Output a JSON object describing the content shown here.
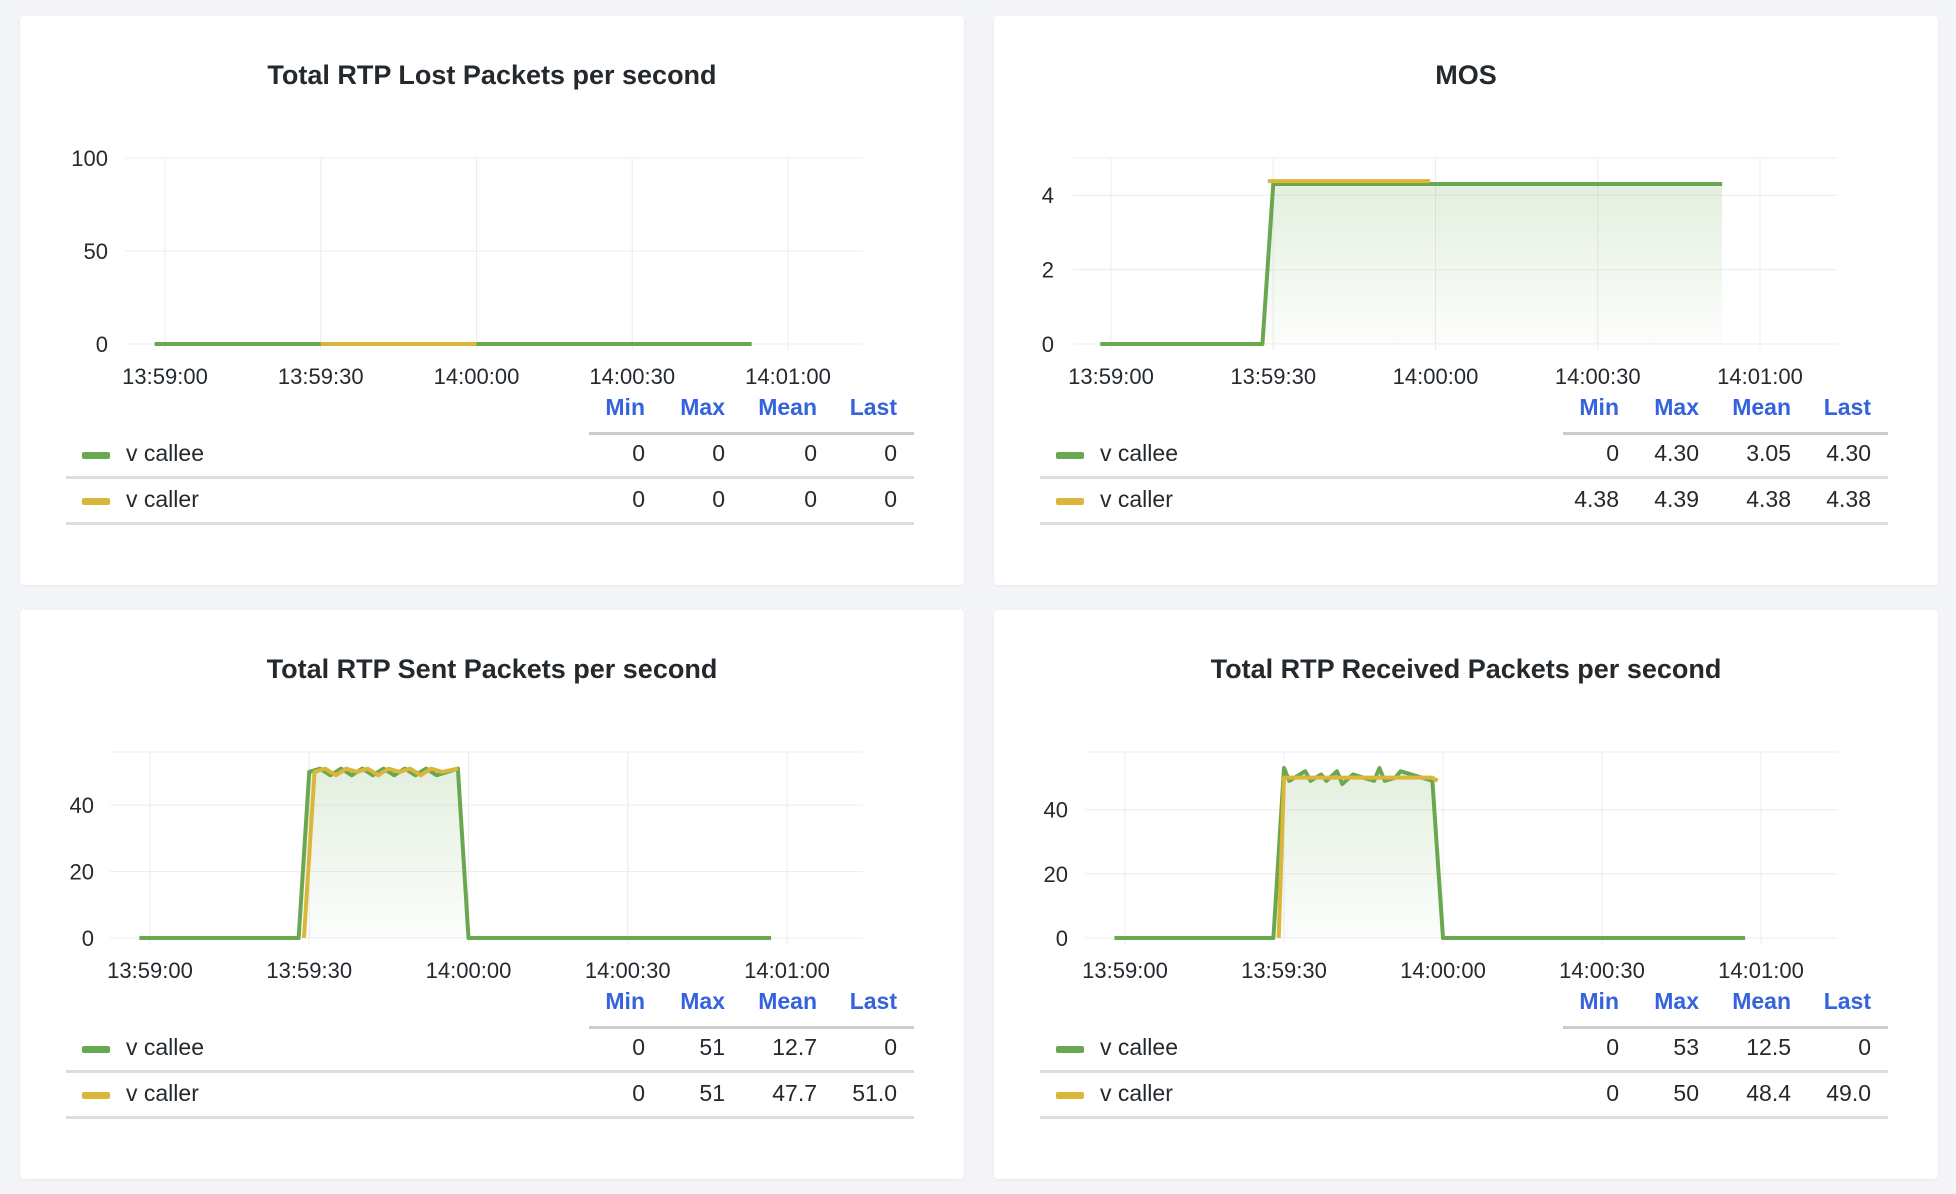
{
  "colors": {
    "callee": "#6aa84f",
    "caller": "#dcb63a",
    "header": "#3563de"
  },
  "legend_headers": [
    "Min",
    "Max",
    "Mean",
    "Last"
  ],
  "panels": [
    {
      "title": "Total RTP Lost Packets per second",
      "chart_data": {
        "type": "line",
        "ylim": [
          0,
          100
        ],
        "yticks": [
          "0",
          "50",
          "100"
        ],
        "xticks": [
          "13:59:00",
          "13:59:30",
          "14:00:00",
          "14:00:30",
          "14:01:00"
        ],
        "series": [
          {
            "name": "v callee",
            "color": "#6aa84f",
            "fill": false,
            "points": [
              [
                "13:58:58",
                0
              ],
              [
                "14:00:53",
                0
              ]
            ]
          },
          {
            "name": "v caller",
            "color": "#dcb63a",
            "fill": false,
            "points": [
              [
                "13:59:30",
                0
              ],
              [
                "14:00:00",
                0
              ]
            ]
          }
        ]
      },
      "legend": [
        {
          "name": "v callee",
          "min": "0",
          "max": "0",
          "mean": "0",
          "last": "0"
        },
        {
          "name": "v caller",
          "min": "0",
          "max": "0",
          "mean": "0",
          "last": "0"
        }
      ]
    },
    {
      "title": "MOS",
      "chart_data": {
        "type": "line",
        "ylim": [
          0,
          5
        ],
        "yticks": [
          "0",
          "2",
          "4"
        ],
        "xticks": [
          "13:59:00",
          "13:59:30",
          "14:00:00",
          "14:00:30",
          "14:01:00"
        ],
        "series": [
          {
            "name": "v callee",
            "color": "#6aa84f",
            "fill": true,
            "points": [
              [
                "13:58:58",
                0
              ],
              [
                "13:59:28",
                0
              ],
              [
                "13:59:30",
                4.3
              ],
              [
                "14:00:53",
                4.3
              ]
            ]
          },
          {
            "name": "v caller",
            "color": "#dcb63a",
            "fill": false,
            "points": [
              [
                "13:59:29",
                4.38
              ],
              [
                "13:59:59",
                4.38
              ]
            ]
          }
        ]
      },
      "legend": [
        {
          "name": "v callee",
          "min": "0",
          "max": "4.30",
          "mean": "3.05",
          "last": "4.30"
        },
        {
          "name": "v caller",
          "min": "4.38",
          "max": "4.39",
          "mean": "4.38",
          "last": "4.38"
        }
      ]
    },
    {
      "title": "Total RTP Sent Packets per second",
      "chart_data": {
        "type": "line",
        "ylim": [
          0,
          56
        ],
        "yticks": [
          "0",
          "20",
          "40"
        ],
        "xticks": [
          "13:59:00",
          "13:59:30",
          "14:00:00",
          "14:00:30",
          "14:01:00"
        ],
        "series": [
          {
            "name": "v callee",
            "color": "#6aa84f",
            "fill": true,
            "points": [
              [
                "13:58:58",
                0
              ],
              [
                "13:59:28",
                0
              ],
              [
                "13:59:30",
                50
              ],
              [
                "13:59:32",
                51
              ],
              [
                "13:59:34",
                49
              ],
              [
                "13:59:36",
                51
              ],
              [
                "13:59:38",
                49
              ],
              [
                "13:59:40",
                51
              ],
              [
                "13:59:42",
                49
              ],
              [
                "13:59:44",
                51
              ],
              [
                "13:59:46",
                49
              ],
              [
                "13:59:48",
                51
              ],
              [
                "13:59:50",
                49
              ],
              [
                "13:59:52",
                51
              ],
              [
                "13:59:54",
                49
              ],
              [
                "13:59:56",
                50
              ],
              [
                "13:59:58",
                51
              ],
              [
                "14:00:00",
                0
              ],
              [
                "14:00:57",
                0
              ]
            ]
          },
          {
            "name": "v caller",
            "color": "#dcb63a",
            "fill": false,
            "points": [
              [
                "13:59:29",
                0
              ],
              [
                "13:59:31",
                50
              ],
              [
                "13:59:33",
                51
              ],
              [
                "13:59:35",
                49
              ],
              [
                "13:59:37",
                51
              ],
              [
                "13:59:39",
                50
              ],
              [
                "13:59:41",
                51
              ],
              [
                "13:59:43",
                49
              ],
              [
                "13:59:45",
                51
              ],
              [
                "13:59:47",
                50
              ],
              [
                "13:59:49",
                51
              ],
              [
                "13:59:51",
                49
              ],
              [
                "13:59:53",
                51
              ],
              [
                "13:59:55",
                50
              ],
              [
                "13:59:58",
                51
              ]
            ]
          }
        ]
      },
      "legend": [
        {
          "name": "v callee",
          "min": "0",
          "max": "51",
          "mean": "12.7",
          "last": "0"
        },
        {
          "name": "v caller",
          "min": "0",
          "max": "51",
          "mean": "47.7",
          "last": "51.0"
        }
      ]
    },
    {
      "title": "Total RTP Received Packets per second",
      "chart_data": {
        "type": "line",
        "ylim": [
          0,
          58
        ],
        "yticks": [
          "0",
          "20",
          "40"
        ],
        "xticks": [
          "13:59:00",
          "13:59:30",
          "14:00:00",
          "14:00:30",
          "14:01:00"
        ],
        "series": [
          {
            "name": "v callee",
            "color": "#6aa84f",
            "fill": true,
            "points": [
              [
                "13:58:58",
                0
              ],
              [
                "13:59:28",
                0
              ],
              [
                "13:59:30",
                53
              ],
              [
                "13:59:31",
                49
              ],
              [
                "13:59:33",
                51
              ],
              [
                "13:59:34",
                52
              ],
              [
                "13:59:35",
                49
              ],
              [
                "13:59:37",
                51
              ],
              [
                "13:59:38",
                49
              ],
              [
                "13:59:40",
                52
              ],
              [
                "13:59:41",
                48
              ],
              [
                "13:59:43",
                51
              ],
              [
                "13:59:45",
                50
              ],
              [
                "13:59:47",
                49
              ],
              [
                "13:59:48",
                53
              ],
              [
                "13:59:49",
                49
              ],
              [
                "13:59:51",
                50
              ],
              [
                "13:59:52",
                52
              ],
              [
                "13:59:54",
                51
              ],
              [
                "13:59:58",
                49
              ],
              [
                "14:00:00",
                0
              ],
              [
                "14:00:57",
                0
              ]
            ]
          },
          {
            "name": "v caller",
            "color": "#dcb63a",
            "fill": false,
            "points": [
              [
                "13:59:29",
                0
              ],
              [
                "13:59:30",
                50
              ],
              [
                "13:59:58",
                50
              ],
              [
                "13:59:59",
                49
              ]
            ]
          }
        ]
      },
      "legend": [
        {
          "name": "v callee",
          "min": "0",
          "max": "53",
          "mean": "12.5",
          "last": "0"
        },
        {
          "name": "v caller",
          "min": "0",
          "max": "50",
          "mean": "48.4",
          "last": "49.0"
        }
      ]
    }
  ]
}
